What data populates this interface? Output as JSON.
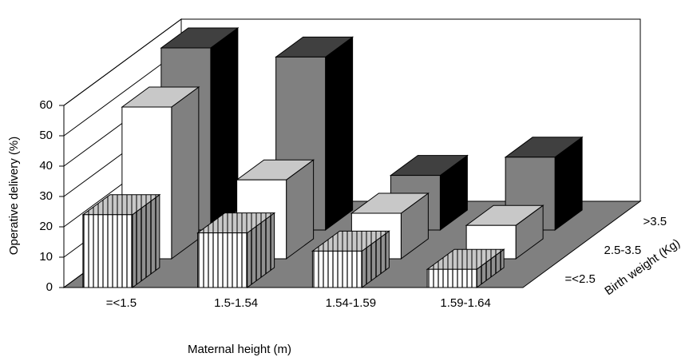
{
  "chart_data": {
    "type": "bar3d",
    "x_label": "Maternal height (m)",
    "y_label": "Operative delivery (%)",
    "z_label": "Birth weight (Kg)",
    "categories": [
      "=<1.5",
      "1.5-1.54",
      "1.54-1.59",
      "1.59-1.64"
    ],
    "series": [
      {
        "name": "=<2.5",
        "color": "#ffffff",
        "hatch": true,
        "values": [
          24,
          18,
          12,
          6
        ]
      },
      {
        "name": "2.5-3.5",
        "color": "#ffffff",
        "values": [
          50,
          26,
          15,
          11
        ]
      },
      {
        "name": ">3.5",
        "color": "#808080",
        "values": [
          60,
          57,
          18,
          24
        ]
      }
    ],
    "ylim": [
      0,
      60
    ],
    "yticks": [
      0,
      10,
      20,
      30,
      40,
      50,
      60
    ],
    "grid": true
  }
}
